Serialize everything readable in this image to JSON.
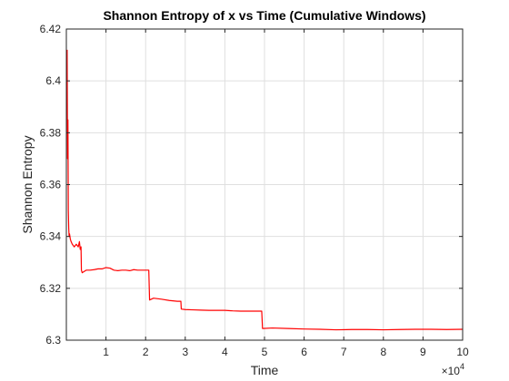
{
  "chart_data": {
    "type": "line",
    "title": "Shannon Entropy of x vs Time (Cumulative Windows)",
    "xlabel": "Time",
    "ylabel": "Shannon Entropy",
    "x_exponent_base": "×10",
    "x_exponent_power": "4",
    "xlim": [
      0,
      100000
    ],
    "ylim": [
      6.3,
      6.42
    ],
    "x_ticks": [
      10000,
      20000,
      30000,
      40000,
      50000,
      60000,
      70000,
      80000,
      90000,
      100000
    ],
    "x_tick_labels": [
      "1",
      "2",
      "3",
      "4",
      "5",
      "6",
      "7",
      "8",
      "9",
      "10"
    ],
    "y_ticks": [
      6.3,
      6.32,
      6.34,
      6.36,
      6.38,
      6.4,
      6.42
    ],
    "y_tick_labels": [
      "6.3",
      "6.32",
      "6.34",
      "6.36",
      "6.38",
      "6.4",
      "6.42"
    ],
    "grid": true,
    "series": [
      {
        "color": "#ff0000",
        "x": [
          200,
          300,
          400,
          500,
          600,
          700,
          800,
          1000,
          1200,
          1500,
          2000,
          2500,
          3000,
          3300,
          3500,
          3700,
          3800,
          4000,
          4500,
          5000,
          6000,
          7000,
          8000,
          9000,
          10000,
          11000,
          12000,
          13000,
          14000,
          15000,
          16000,
          17000,
          18000,
          19000,
          20000,
          20800,
          21000,
          22000,
          24000,
          26000,
          28000,
          28900,
          29000,
          30000,
          32000,
          34000,
          36000,
          38000,
          40000,
          42000,
          44000,
          46000,
          48000,
          49300,
          49500,
          52000,
          56000,
          60000,
          64000,
          68000,
          72000,
          76000,
          80000,
          84000,
          88000,
          92000,
          96000,
          100000
        ],
        "y": [
          6.412,
          6.37,
          6.385,
          6.35,
          6.343,
          6.34,
          6.341,
          6.339,
          6.338,
          6.337,
          6.336,
          6.337,
          6.336,
          6.338,
          6.335,
          6.336,
          6.327,
          6.326,
          6.3265,
          6.327,
          6.327,
          6.3272,
          6.3275,
          6.3275,
          6.328,
          6.3278,
          6.327,
          6.3268,
          6.327,
          6.327,
          6.3268,
          6.3272,
          6.327,
          6.327,
          6.327,
          6.327,
          6.3155,
          6.3162,
          6.3158,
          6.3153,
          6.315,
          6.315,
          6.312,
          6.3118,
          6.3117,
          6.3116,
          6.3115,
          6.3115,
          6.3115,
          6.3113,
          6.3112,
          6.3112,
          6.3112,
          6.3112,
          6.3045,
          6.3047,
          6.3045,
          6.3043,
          6.3042,
          6.304,
          6.3041,
          6.3041,
          6.304,
          6.3041,
          6.3042,
          6.3042,
          6.3041,
          6.3042
        ]
      }
    ]
  }
}
